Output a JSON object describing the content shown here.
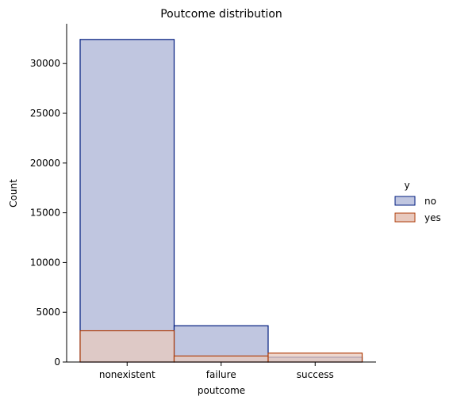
{
  "chart_data": {
    "type": "bar",
    "title": "Poutcome distribution",
    "xlabel": "poutcome",
    "ylabel": "Count",
    "categories": [
      "nonexistent",
      "failure",
      "success"
    ],
    "ylim": [
      0,
      34000
    ],
    "yticks": [
      0,
      5000,
      10000,
      15000,
      20000,
      25000,
      30000
    ],
    "grid": false,
    "legend": {
      "title": "y",
      "placement": "center-right"
    },
    "series": [
      {
        "name": "no",
        "values": [
          32422,
          3647,
          479
        ],
        "color": "#001c7f",
        "fill": "#c0c6e0"
      },
      {
        "name": "yes",
        "values": [
          3141,
          605,
          894
        ],
        "color": "#b1400d",
        "fill": "#e8c9be"
      }
    ]
  }
}
